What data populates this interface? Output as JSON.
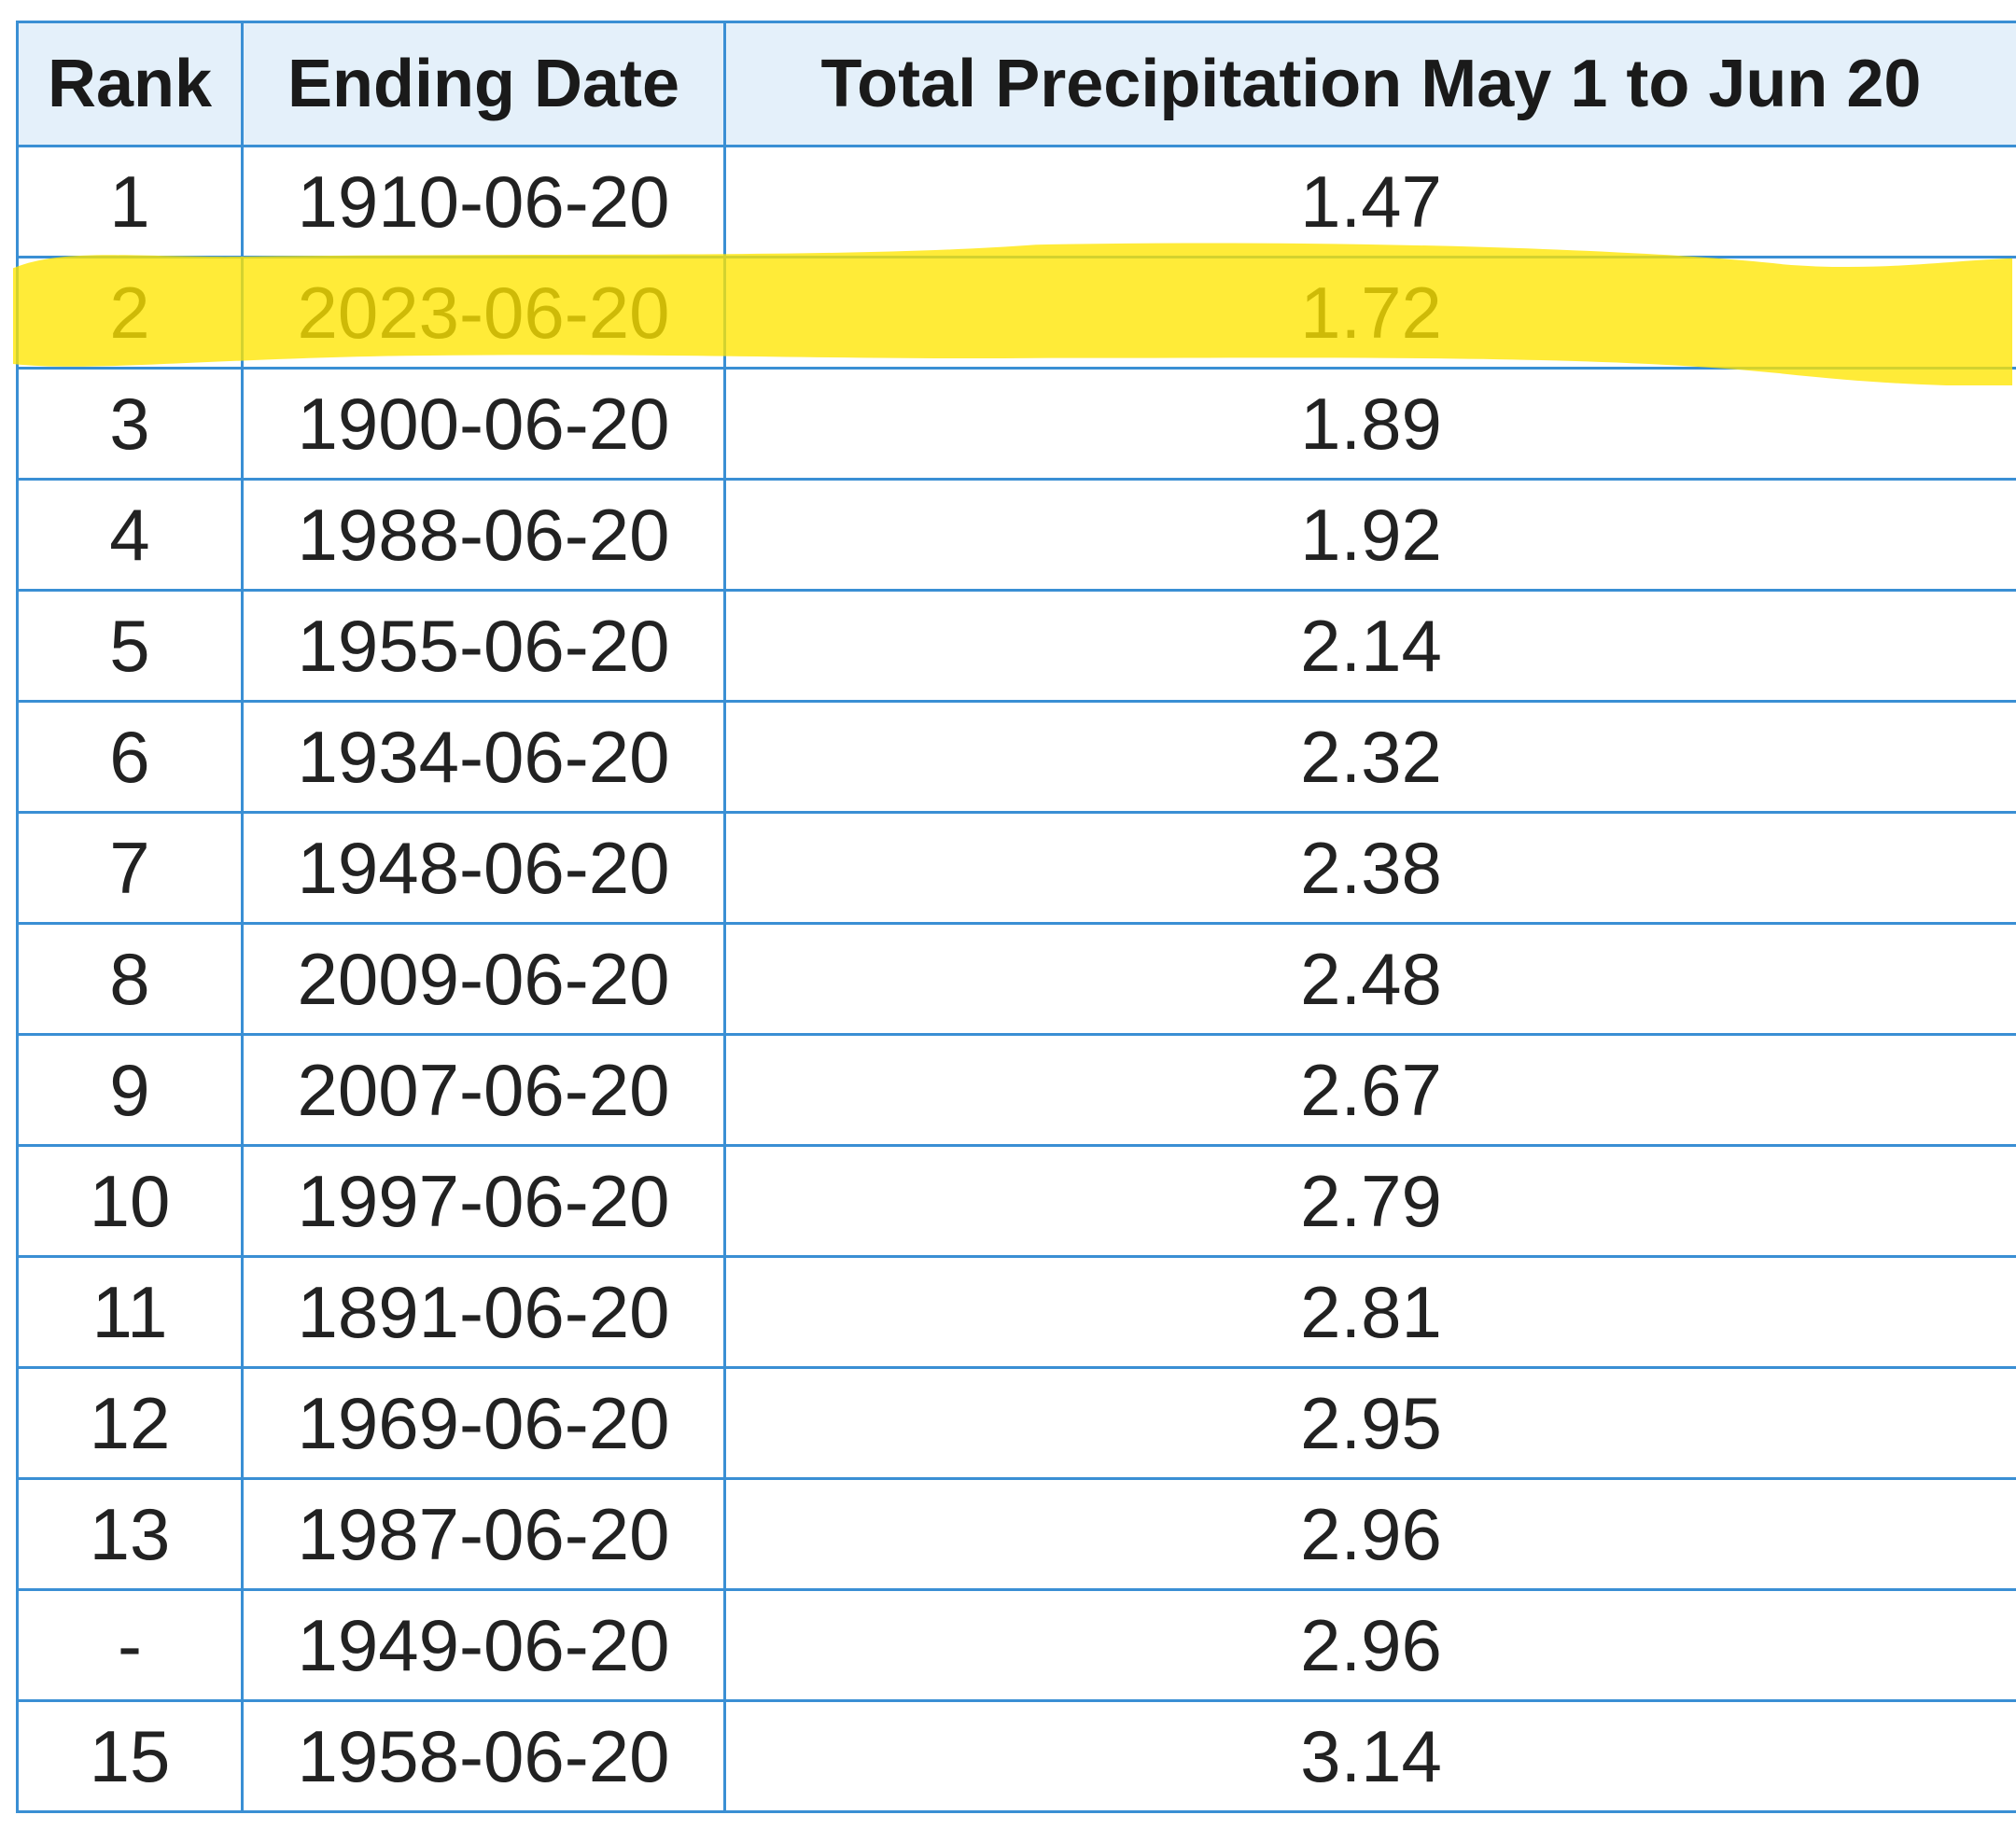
{
  "table": {
    "headers": {
      "rank": "Rank",
      "ending_date": "Ending Date",
      "total_precipitation": "Total Precipitation May 1 to Jun 20"
    },
    "rows": [
      {
        "rank": "1",
        "ending_date": "1910-06-20",
        "precip": "1.47"
      },
      {
        "rank": "2",
        "ending_date": "2023-06-20",
        "precip": "1.72"
      },
      {
        "rank": "3",
        "ending_date": "1900-06-20",
        "precip": "1.89"
      },
      {
        "rank": "4",
        "ending_date": "1988-06-20",
        "precip": "1.92"
      },
      {
        "rank": "5",
        "ending_date": "1955-06-20",
        "precip": "2.14"
      },
      {
        "rank": "6",
        "ending_date": "1934-06-20",
        "precip": "2.32"
      },
      {
        "rank": "7",
        "ending_date": "1948-06-20",
        "precip": "2.38"
      },
      {
        "rank": "8",
        "ending_date": "2009-06-20",
        "precip": "2.48"
      },
      {
        "rank": "9",
        "ending_date": "2007-06-20",
        "precip": "2.67"
      },
      {
        "rank": "10",
        "ending_date": "1997-06-20",
        "precip": "2.79"
      },
      {
        "rank": "11",
        "ending_date": "1891-06-20",
        "precip": "2.81"
      },
      {
        "rank": "12",
        "ending_date": "1969-06-20",
        "precip": "2.95"
      },
      {
        "rank": "13",
        "ending_date": "1987-06-20",
        "precip": "2.96"
      },
      {
        "rank": "-",
        "ending_date": "1949-06-20",
        "precip": "2.96"
      },
      {
        "rank": "15",
        "ending_date": "1958-06-20",
        "precip": "3.14"
      }
    ],
    "highlighted_row_index": 1
  },
  "colors": {
    "border": "#3a8fd4",
    "header_background": "#e4f0fa",
    "highlight": "#ffe600"
  }
}
